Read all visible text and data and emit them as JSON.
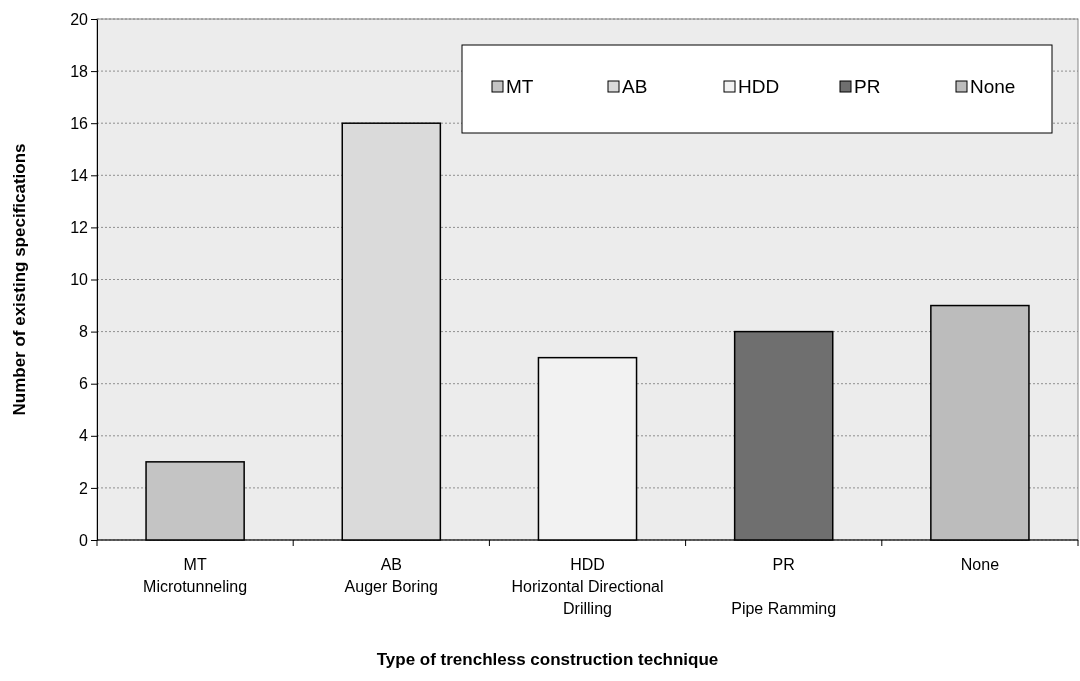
{
  "chart_data": {
    "type": "bar",
    "xlabel": "Type of trenchless construction technique",
    "ylabel": "Number of existing specifications",
    "categories": [
      "MT\nMicrotunneling",
      "AB\nAuger Boring",
      "HDD\nHorizontal Directional\nDrilling",
      "PR\n\nPipe Ramming",
      "None"
    ],
    "series": [
      {
        "name": "MT",
        "color": "#c4c4c4",
        "values": [
          3,
          null,
          null,
          null,
          null
        ]
      },
      {
        "name": "AB",
        "color": "#dadada",
        "values": [
          null,
          16,
          null,
          null,
          null
        ]
      },
      {
        "name": "HDD",
        "color": "#f2f2f2",
        "values": [
          null,
          null,
          7,
          null,
          null
        ]
      },
      {
        "name": "PR",
        "color": "#6f6f6f",
        "values": [
          null,
          null,
          null,
          8,
          null
        ]
      },
      {
        "name": "None",
        "color": "#bcbcbc",
        "values": [
          null,
          null,
          null,
          null,
          9
        ]
      }
    ],
    "ylim": [
      0,
      20
    ],
    "yticks": [
      0,
      2,
      4,
      6,
      8,
      10,
      12,
      14,
      16,
      18,
      20
    ],
    "grid": "y",
    "legend": "top right"
  }
}
